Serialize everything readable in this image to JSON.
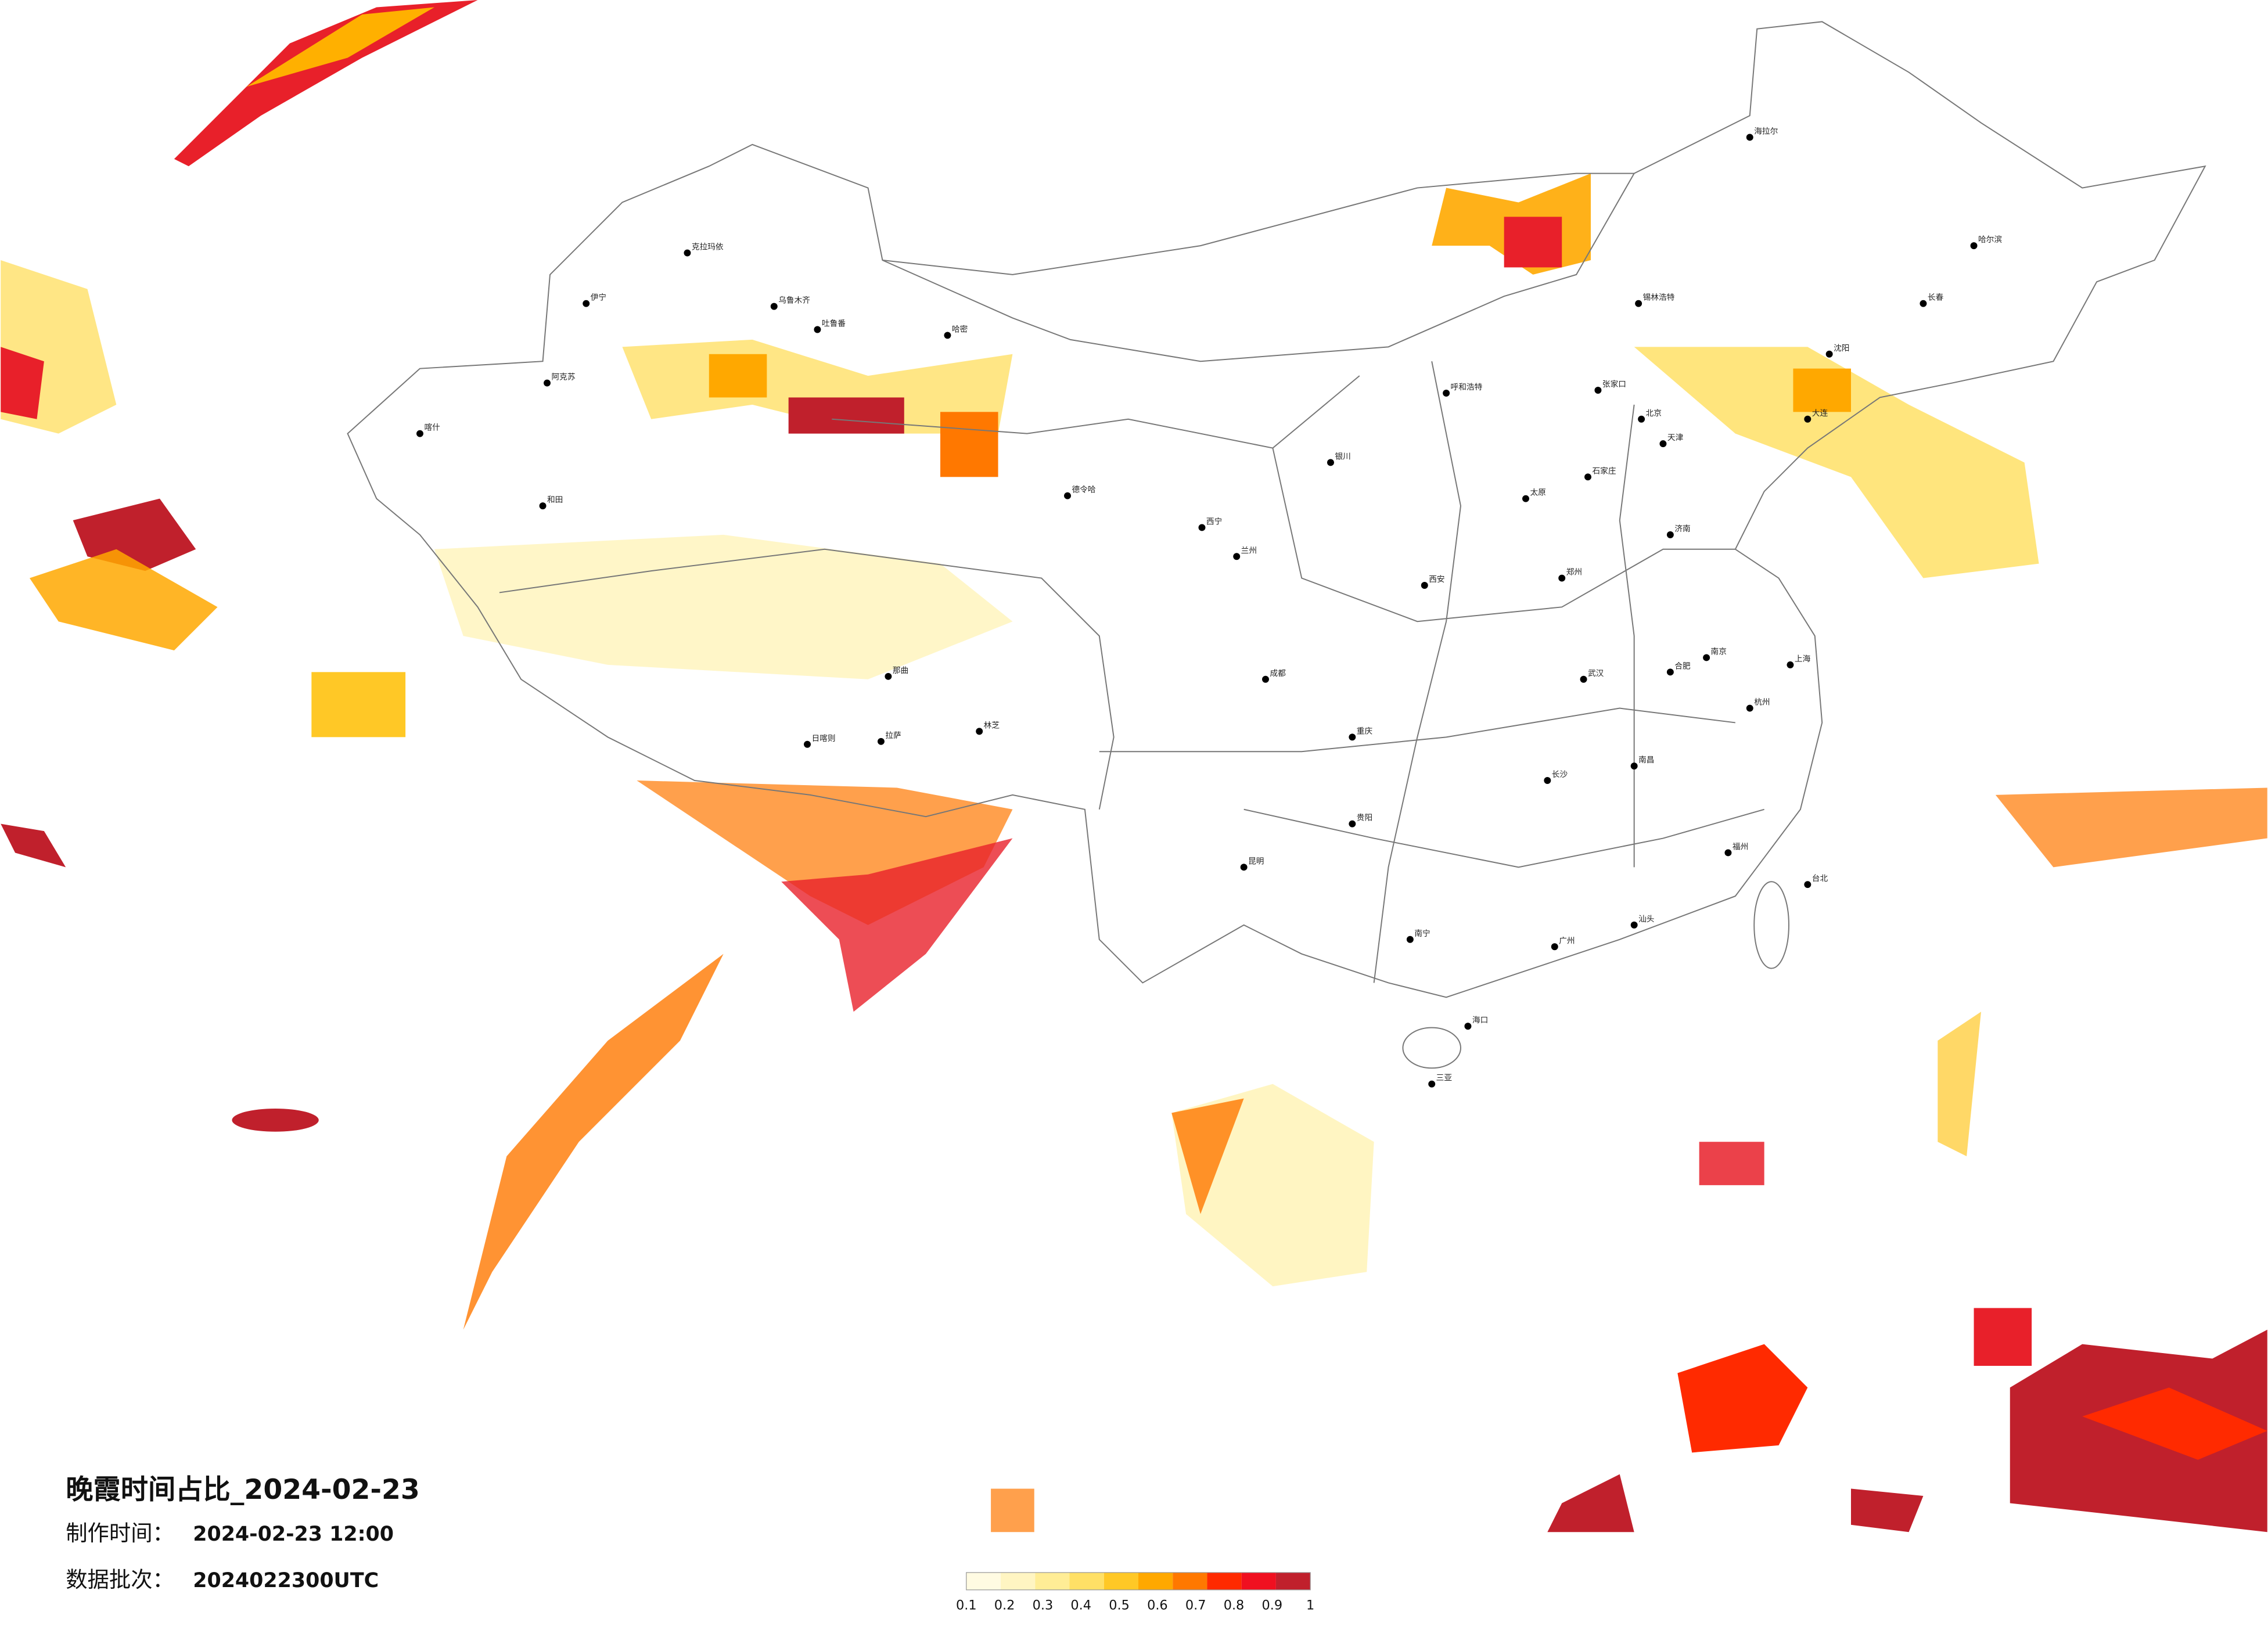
{
  "title": "晚霞时间占比_2024-02-23",
  "made_label": "制作时间：",
  "made_time": "2024-02-23 12:00",
  "batch_label": "数据批次：",
  "batch": "2024022300UTC",
  "colorbar": {
    "ticks": [
      0.1,
      0.2,
      0.3,
      0.4,
      0.5,
      0.6,
      0.7,
      0.8,
      0.9,
      1
    ],
    "colors": [
      "#fffbe2",
      "#fff5c2",
      "#ffed96",
      "#ffe066",
      "#ffc826",
      "#ffa800",
      "#ff7800",
      "#ff2a00",
      "#f01020",
      "#c0202c"
    ]
  },
  "cities": [
    "克拉玛依",
    "伊宁",
    "乌鲁木齐",
    "吐鲁番",
    "哈密",
    "阿克苏",
    "喀什",
    "和田",
    "德令哈",
    "那曲",
    "拉萨",
    "日喀则",
    "林芝",
    "西宁",
    "兰州",
    "银川",
    "呼和浩特",
    "北京",
    "天津",
    "石家庄",
    "太原",
    "济南",
    "郑州",
    "西安",
    "成都",
    "重庆",
    "贵阳",
    "昆明",
    "南宁",
    "广州",
    "长沙",
    "武汉",
    "南昌",
    "合肥",
    "南京",
    "上海",
    "杭州",
    "福州",
    "台北",
    "海口",
    "沈阳",
    "大连",
    "长春",
    "哈尔滨",
    "海拉尔",
    "锡林浩特",
    "张家口",
    "汕头",
    "三亚"
  ]
}
